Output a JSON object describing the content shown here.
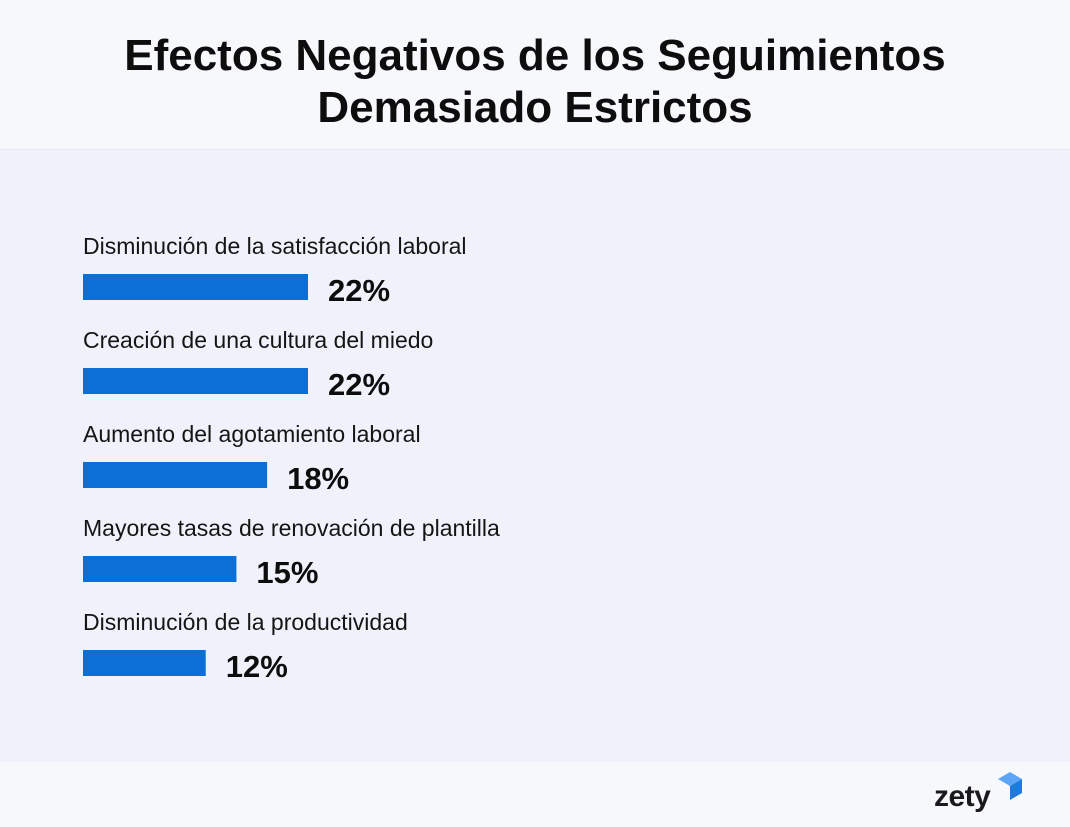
{
  "title": "Efectos Negativos de los Seguimientos\nDemasiado Estrictos",
  "brand": {
    "name": "zety",
    "accent": "#1f7ae0",
    "accent_dark": "#0b4fb3"
  },
  "colors": {
    "bar": "#0a6fd6",
    "panel": "#eff2fa",
    "background": "#f7f8fb"
  },
  "chart_data": {
    "type": "bar",
    "orientation": "horizontal",
    "title": "Efectos Negativos de los Seguimientos Demasiado Estrictos",
    "categories": [
      "Disminución de la satisfacción laboral",
      "Creación de una cultura del miedo",
      "Aumento del agotamiento laboral",
      "Mayores tasas de renovación de plantilla",
      "Disminución de la productividad"
    ],
    "values": [
      22,
      22,
      18,
      15,
      12
    ],
    "value_labels": [
      "22%",
      "22%",
      "18%",
      "15%",
      "12%"
    ],
    "unit": "%",
    "xlim": [
      0,
      22
    ],
    "xlabel": "",
    "ylabel": "",
    "grid": false,
    "legend": "none"
  }
}
